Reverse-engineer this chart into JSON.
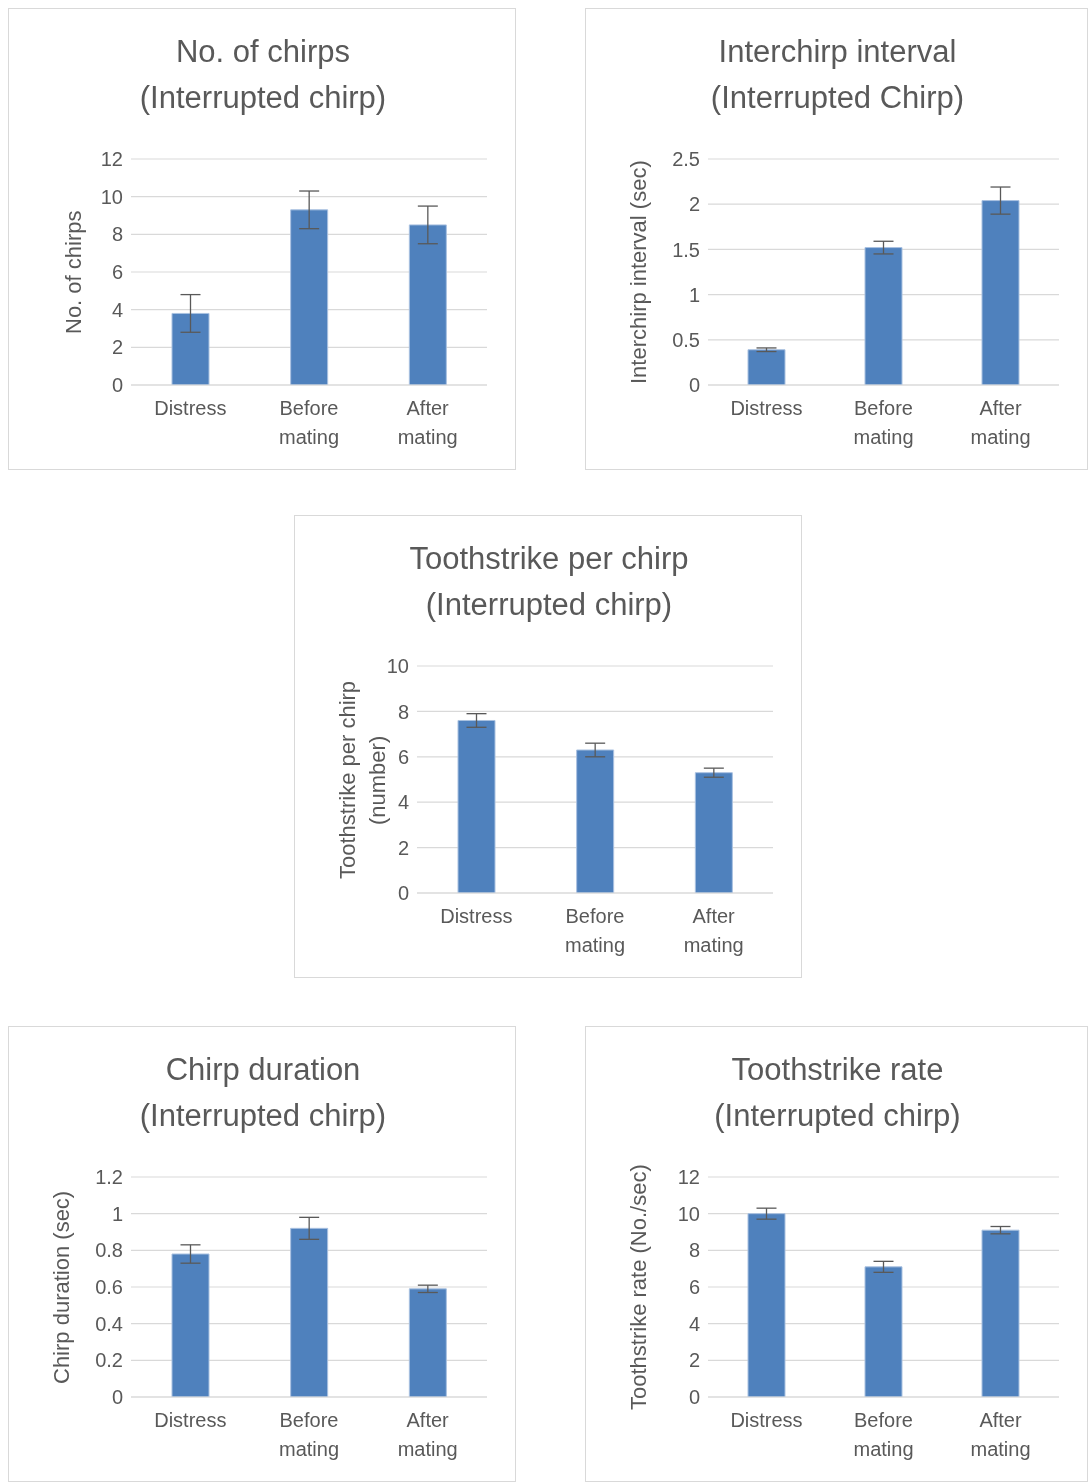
{
  "chart_data": [
    {
      "type": "bar",
      "title": "No. of chirps",
      "subtitle": "(Interrupted chirp)",
      "ylabel": "No. of chirps",
      "categories": [
        "Distress",
        "Before mating",
        "After mating"
      ],
      "values": [
        3.8,
        9.3,
        8.5
      ],
      "errors": [
        1,
        1,
        1
      ],
      "color": "#4f81bd",
      "ylim": [
        0,
        12
      ],
      "yticks": [
        0,
        2,
        4,
        6,
        8,
        10,
        12
      ],
      "grid": "y"
    },
    {
      "type": "bar",
      "title": "Interchirp interval",
      "subtitle": "(Interrupted Chirp)",
      "ylabel": "Interchirp interval (sec)",
      "categories": [
        "Distress",
        "Before mating",
        "After mating"
      ],
      "values": [
        0.39,
        1.52,
        2.04
      ],
      "errors": [
        0.02,
        0.07,
        0.15
      ],
      "color": "#4f81bd",
      "ylim": [
        0,
        2.5
      ],
      "yticks": [
        0,
        0.5,
        1,
        1.5,
        2,
        2.5
      ],
      "grid": "y"
    },
    {
      "type": "bar",
      "title": "Toothstrike per chirp",
      "subtitle": "(Interrupted chirp)",
      "ylabel": "Toothstrike per chirp (number)",
      "categories": [
        "Distress",
        "Before mating",
        "After mating"
      ],
      "values": [
        7.6,
        6.3,
        5.3
      ],
      "errors": [
        0.3,
        0.3,
        0.2
      ],
      "color": "#4f81bd",
      "ylim": [
        0,
        10
      ],
      "yticks": [
        0,
        2,
        4,
        6,
        8,
        10
      ],
      "grid": "y"
    },
    {
      "type": "bar",
      "title": "Chirp duration",
      "subtitle": "(Interrupted chirp)",
      "ylabel": "Chirp duration (sec)",
      "categories": [
        "Distress",
        "Before mating",
        "After mating"
      ],
      "values": [
        0.78,
        0.92,
        0.59
      ],
      "errors": [
        0.05,
        0.06,
        0.02
      ],
      "color": "#4f81bd",
      "ylim": [
        0,
        1.2
      ],
      "yticks": [
        0,
        0.2,
        0.4,
        0.6,
        0.8,
        1,
        1.2
      ],
      "grid": "y"
    },
    {
      "type": "bar",
      "title": "Toothstrike rate",
      "subtitle": "(Interrupted chirp)",
      "ylabel": "Toothstrike rate (No./sec)",
      "categories": [
        "Distress",
        "Before mating",
        "After mating"
      ],
      "values": [
        10,
        7.1,
        9.1
      ],
      "errors": [
        0.3,
        0.3,
        0.2
      ],
      "color": "#4f81bd",
      "ylim": [
        0,
        12
      ],
      "yticks": [
        0,
        2,
        4,
        6,
        8,
        10,
        12
      ],
      "grid": "y"
    }
  ]
}
